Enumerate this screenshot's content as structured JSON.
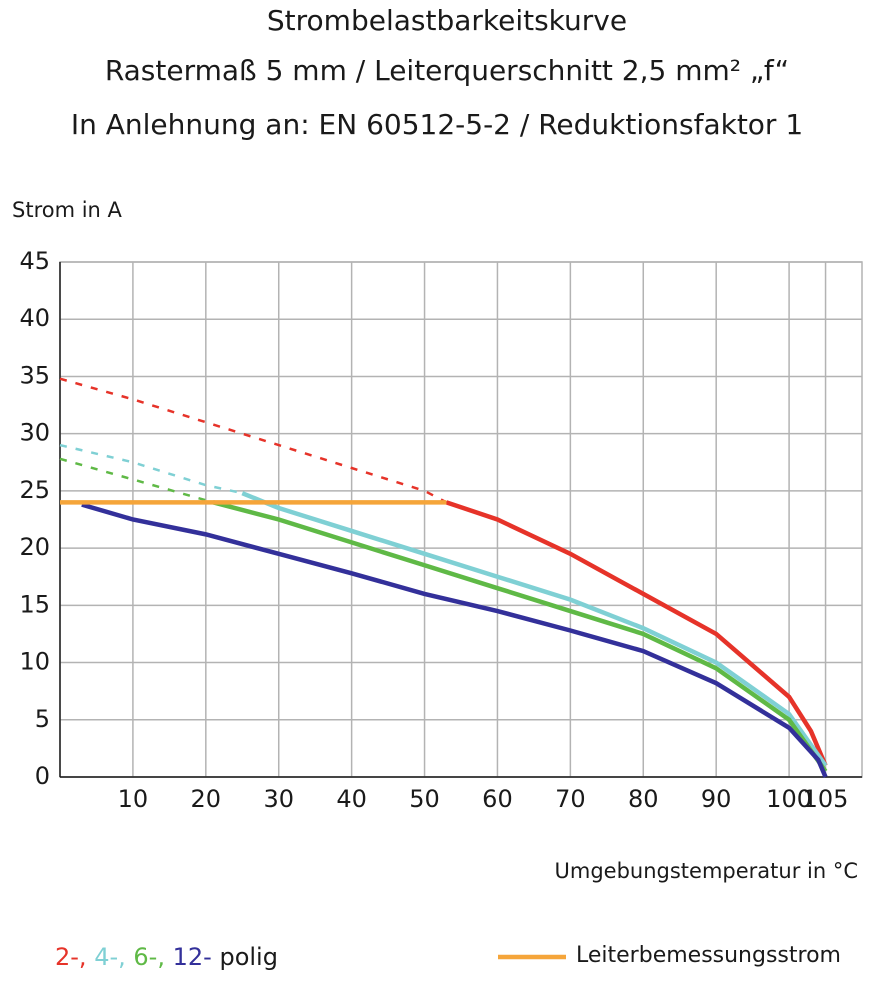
{
  "chart_data": {
    "type": "line",
    "title": "Strombelastbarkeitskurve",
    "subtitle": "Rastermaß 5 mm / Leiterquerschnitt 2,5 mm² „f“",
    "subtitle2": "In Anlehnung an: EN 60512-5-2 / Reduktionsfaktor 1",
    "ylabel": "Strom in A",
    "xlabel": "Umgebungstemperatur in °C",
    "legend_suffix": "polig",
    "xlim": [
      0,
      110
    ],
    "xticks": [
      10,
      20,
      30,
      40,
      50,
      60,
      70,
      80,
      90,
      100,
      105
    ],
    "ylim": [
      0,
      45
    ],
    "yticks": [
      0,
      5,
      10,
      15,
      20,
      25,
      30,
      35,
      40,
      45
    ],
    "grid": true,
    "series": [
      {
        "name": "2-,",
        "color": "#e63329",
        "dashed_until": 53,
        "x": [
          0,
          10,
          20,
          30,
          40,
          50,
          53,
          60,
          70,
          80,
          90,
          100,
          103,
          105
        ],
        "values": [
          34.8,
          33,
          31,
          29,
          27,
          25,
          24,
          22.5,
          19.5,
          16,
          12.5,
          7,
          4,
          1
        ]
      },
      {
        "name": "4-,",
        "color": "#7fd0d4",
        "dashed_until": 25,
        "x": [
          0,
          10,
          20,
          25,
          30,
          40,
          50,
          60,
          70,
          80,
          90,
          100,
          105
        ],
        "values": [
          29,
          27.5,
          25.5,
          24.8,
          23.5,
          21.5,
          19.5,
          17.5,
          15.5,
          13,
          10,
          5.5,
          1
        ]
      },
      {
        "name": "6-,",
        "color": "#5fb946",
        "dashed_until": 21,
        "x": [
          0,
          10,
          21,
          30,
          40,
          50,
          60,
          70,
          80,
          90,
          100,
          105
        ],
        "values": [
          27.8,
          26,
          24,
          22.5,
          20.5,
          18.5,
          16.5,
          14.5,
          12.5,
          9.5,
          5,
          0.5
        ]
      },
      {
        "name": "12-",
        "color": "#33309a",
        "dashed_until": 3,
        "x": [
          3,
          10,
          20,
          30,
          40,
          50,
          60,
          70,
          80,
          90,
          100,
          104,
          105
        ],
        "values": [
          23.8,
          22.5,
          21.2,
          19.5,
          17.8,
          16,
          14.5,
          12.8,
          11,
          8.2,
          4.3,
          1.5,
          0
        ]
      },
      {
        "name": "Leiterbemessungsstrom",
        "color": "#f5a53a",
        "x": [
          0,
          53
        ],
        "values": [
          24,
          24
        ]
      }
    ]
  }
}
